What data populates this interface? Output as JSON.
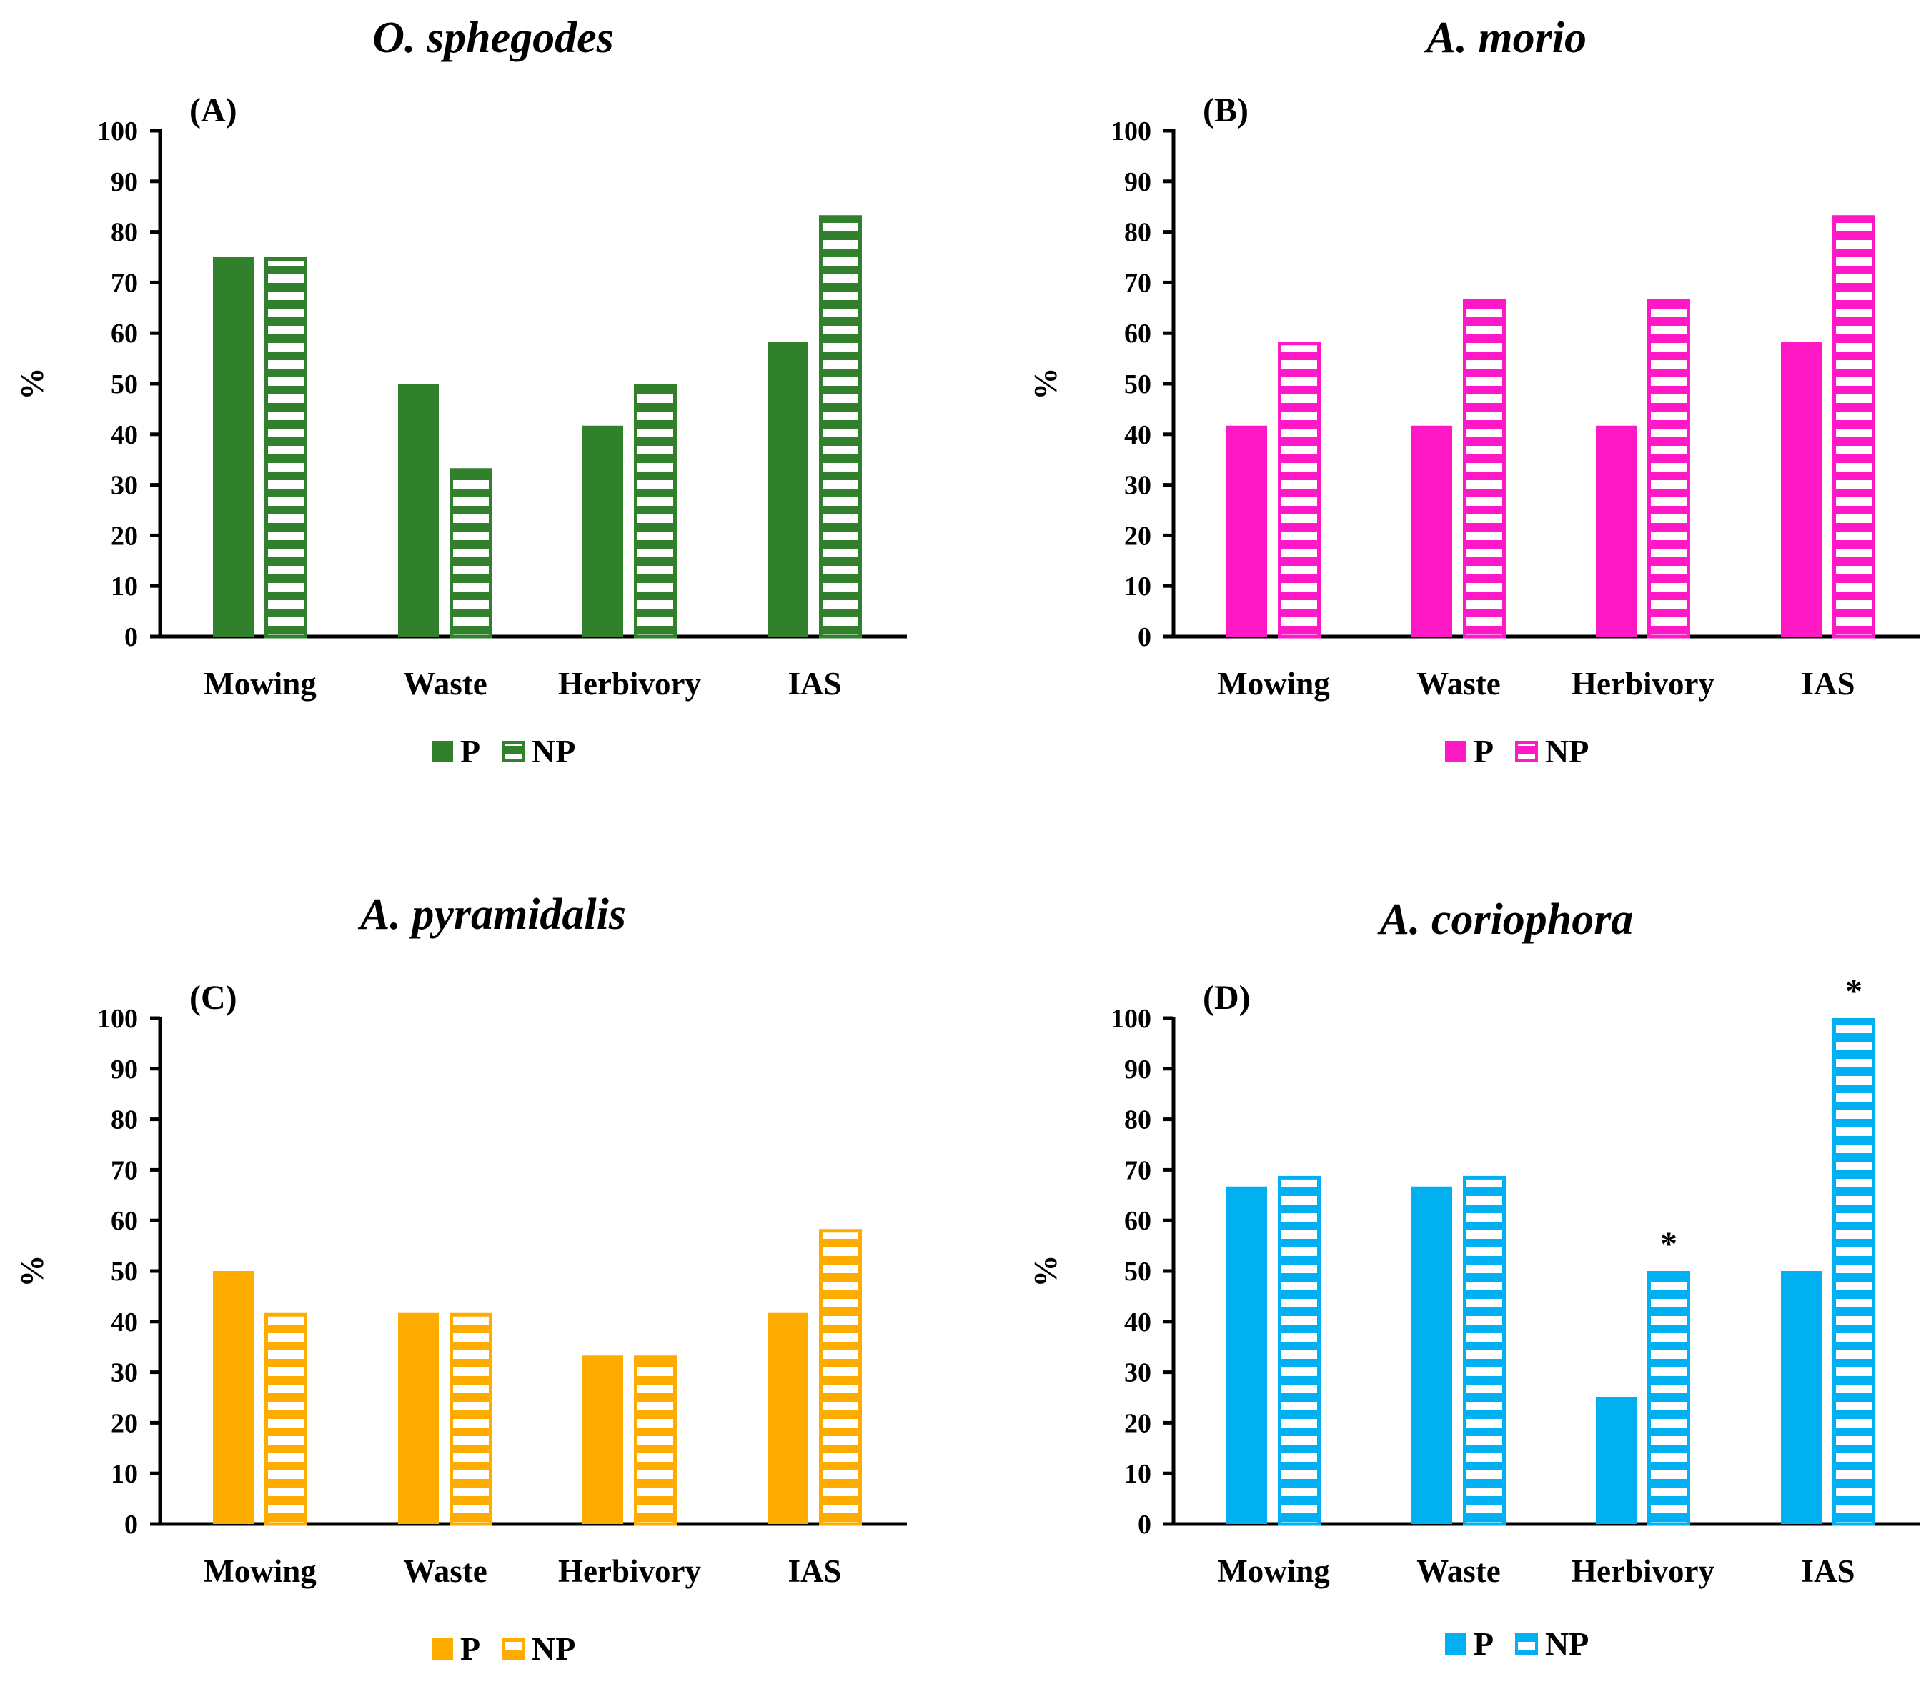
{
  "chart_data": [
    {
      "type": "bar",
      "panel_label": "(A)",
      "title": "O. sphegodes",
      "ylabel": "%",
      "ylim": [
        0,
        100
      ],
      "yticks": [
        0,
        10,
        20,
        30,
        40,
        50,
        60,
        70,
        80,
        90,
        100
      ],
      "categories": [
        "Mowing",
        "Waste",
        "Herbivory",
        "IAS"
      ],
      "color": "#31812c",
      "series": [
        {
          "name": "P",
          "values": [
            75,
            50,
            41.7,
            58.3
          ]
        },
        {
          "name": "NP",
          "values": [
            75,
            33.3,
            50,
            83.3
          ]
        }
      ],
      "annotations": []
    },
    {
      "type": "bar",
      "panel_label": "(B)",
      "title": "A. morio",
      "ylabel": "%",
      "ylim": [
        0,
        100
      ],
      "yticks": [
        0,
        10,
        20,
        30,
        40,
        50,
        60,
        70,
        80,
        90,
        100
      ],
      "categories": [
        "Mowing",
        "Waste",
        "Herbivory",
        "IAS"
      ],
      "color": "#ff19c6",
      "series": [
        {
          "name": "P",
          "values": [
            41.7,
            41.7,
            41.7,
            58.3
          ]
        },
        {
          "name": "NP",
          "values": [
            58.3,
            66.7,
            66.7,
            83.3
          ]
        }
      ],
      "annotations": []
    },
    {
      "type": "bar",
      "panel_label": "(C)",
      "title": "A. pyramidalis",
      "ylabel": "%",
      "ylim": [
        0,
        100
      ],
      "yticks": [
        0,
        10,
        20,
        30,
        40,
        50,
        60,
        70,
        80,
        90,
        100
      ],
      "categories": [
        "Mowing",
        "Waste",
        "Herbivory",
        "IAS"
      ],
      "color": "#ffac00",
      "series": [
        {
          "name": "P",
          "values": [
            50,
            41.7,
            33.3,
            41.7
          ]
        },
        {
          "name": "NP",
          "values": [
            41.7,
            41.7,
            33.3,
            58.3
          ]
        }
      ],
      "annotations": []
    },
    {
      "type": "bar",
      "panel_label": "(D)",
      "title": "A. coriophora",
      "ylabel": "%",
      "ylim": [
        0,
        100
      ],
      "yticks": [
        0,
        10,
        20,
        30,
        40,
        50,
        60,
        70,
        80,
        90,
        100
      ],
      "categories": [
        "Mowing",
        "Waste",
        "Herbivory",
        "IAS"
      ],
      "color": "#00b0f0",
      "series": [
        {
          "name": "P",
          "values": [
            66.7,
            66.7,
            25,
            50
          ]
        },
        {
          "name": "NP",
          "values": [
            68.8,
            68.8,
            50,
            100
          ]
        }
      ],
      "annotations": [
        {
          "category": "Herbivory",
          "series": "NP",
          "text": "*"
        },
        {
          "category": "IAS",
          "series": "NP",
          "text": "*"
        }
      ]
    }
  ]
}
